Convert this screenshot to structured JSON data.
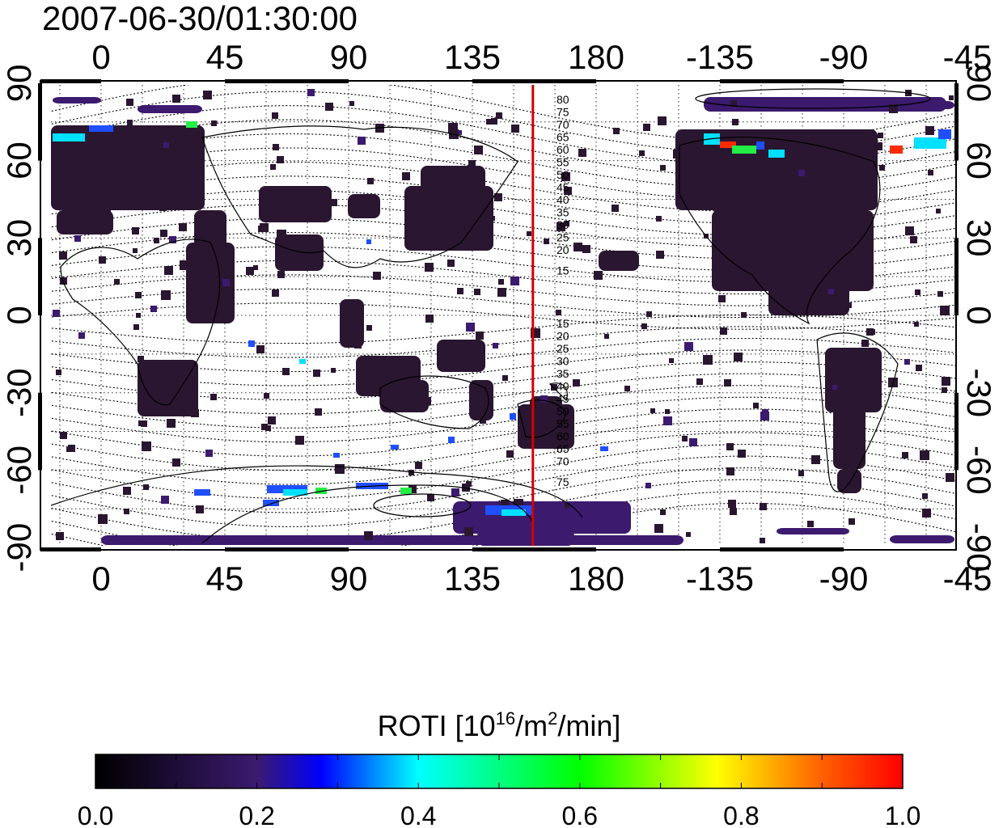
{
  "header": {
    "timestamp": "2007-06-30/01:30:00"
  },
  "map": {
    "lon_ticks": [
      "0",
      "45",
      "90",
      "135",
      "180",
      "-135",
      "-90",
      "-45"
    ],
    "lat_ticks_left": [
      "90",
      "60",
      "30",
      "0",
      "-30",
      "-60",
      "-90"
    ],
    "lat_ticks_right": [
      "90",
      "60",
      "30",
      "0",
      "-30",
      "-60",
      "-90"
    ],
    "contour_labels_north": [
      "80",
      "75",
      "70",
      "65",
      "60",
      "55",
      "50",
      "45",
      "40",
      "35",
      "30",
      "25",
      "20",
      "15"
    ],
    "contour_labels_south": [
      "15",
      "20",
      "25",
      "30",
      "35",
      "40",
      "45",
      "50",
      "55",
      "60",
      "65",
      "70",
      "75"
    ],
    "terminator_longitude": 157,
    "terminator_color": "#d40000",
    "data_colors": {
      "low": "#2a1630",
      "mid": "#3c1a6e",
      "blue": "#1f4fff",
      "cyan": "#00e0ff",
      "green": "#22ee44",
      "red": "#ff2a00"
    }
  },
  "colorbar": {
    "label_prefix": "ROTI  [10",
    "label_exp1": "16",
    "label_mid": "/m",
    "label_exp2": "2",
    "label_suffix": "/min]",
    "ticks": [
      "0.0",
      "0.2",
      "0.4",
      "0.6",
      "0.8",
      "1.0"
    ],
    "range": [
      0.0,
      1.0
    ],
    "gradient": [
      "#000000",
      "#3a1a6e",
      "#0000ff",
      "#00ffff",
      "#00ff00",
      "#ffff00",
      "#ff0000"
    ]
  }
}
